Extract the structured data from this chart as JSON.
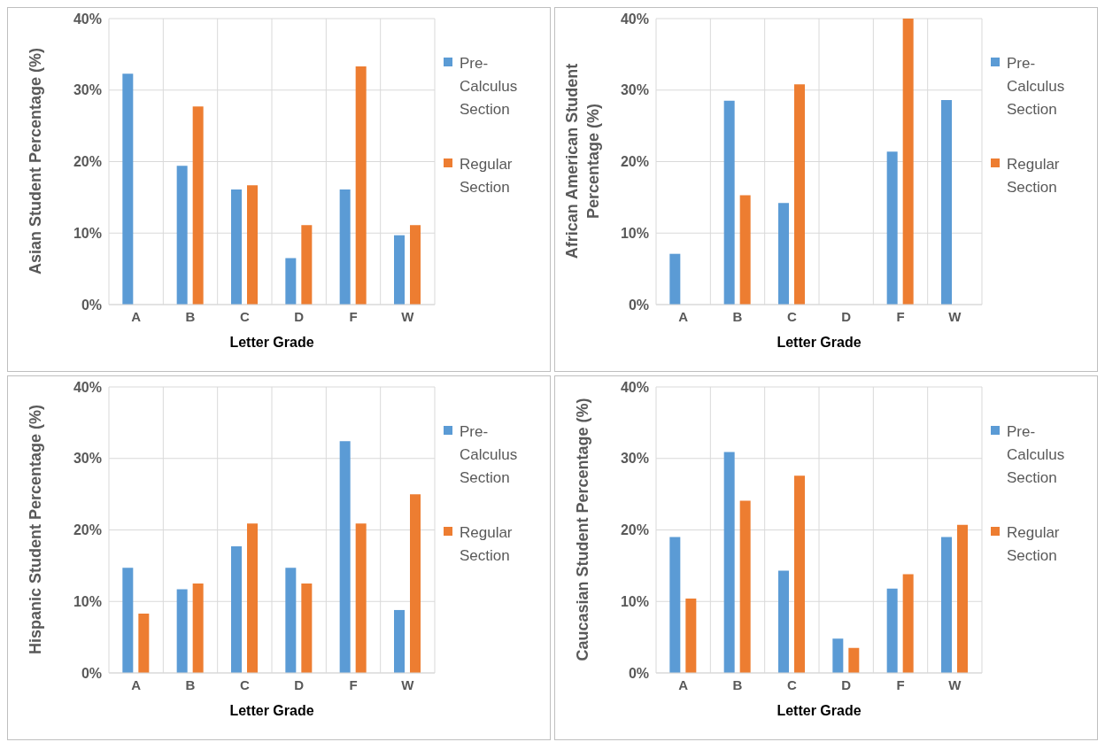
{
  "chart_data": [
    {
      "type": "bar",
      "categories": [
        "A",
        "B",
        "C",
        "D",
        "F",
        "W"
      ],
      "xlabel": "Letter Grade",
      "ylabel": "Asian Student Percentage (%)",
      "ylim": [
        0,
        40
      ],
      "yticks": [
        {
          "value": 0,
          "label": "0%"
        },
        {
          "value": 10,
          "label": "10%"
        },
        {
          "value": 20,
          "label": "20%"
        },
        {
          "value": 30,
          "label": "30%"
        },
        {
          "value": 40,
          "label": "40%"
        }
      ],
      "grid": true,
      "legend": "right",
      "series": [
        {
          "name": "Pre-Calculus Section",
          "color": "#5b9bd5",
          "values": [
            32.3,
            19.4,
            16.1,
            6.5,
            16.1,
            9.7
          ]
        },
        {
          "name": "Regular Section",
          "color": "#ed7d31",
          "values": [
            0,
            27.7,
            16.7,
            11.1,
            33.3,
            11.1
          ]
        }
      ]
    },
    {
      "type": "bar",
      "categories": [
        "A",
        "B",
        "C",
        "D",
        "F",
        "W"
      ],
      "xlabel": "Letter Grade",
      "ylabel": "African American Student Percentage (%)",
      "ylim": [
        0,
        40
      ],
      "yticks": [
        {
          "value": 0,
          "label": "0%"
        },
        {
          "value": 10,
          "label": "10%"
        },
        {
          "value": 20,
          "label": "20%"
        },
        {
          "value": 30,
          "label": "30%"
        },
        {
          "value": 40,
          "label": "40%"
        }
      ],
      "grid": true,
      "legend": "right",
      "series": [
        {
          "name": "Pre-Calculus Section",
          "color": "#5b9bd5",
          "values": [
            7.1,
            28.5,
            14.2,
            0,
            21.4,
            28.6
          ]
        },
        {
          "name": "Regular Section",
          "color": "#ed7d31",
          "values": [
            0,
            15.3,
            30.8,
            0,
            40,
            0
          ]
        }
      ]
    },
    {
      "type": "bar",
      "categories": [
        "A",
        "B",
        "C",
        "D",
        "F",
        "W"
      ],
      "xlabel": "Letter Grade",
      "ylabel": "Hispanic Student Percentage (%)",
      "ylim": [
        0,
        40
      ],
      "yticks": [
        {
          "value": 0,
          "label": "0%"
        },
        {
          "value": 10,
          "label": "10%"
        },
        {
          "value": 20,
          "label": "20%"
        },
        {
          "value": 30,
          "label": "30%"
        },
        {
          "value": 40,
          "label": "40%"
        }
      ],
      "grid": true,
      "legend": "right",
      "series": [
        {
          "name": "Pre-Calculus Section",
          "color": "#5b9bd5",
          "values": [
            14.7,
            11.7,
            17.7,
            14.7,
            32.4,
            8.8
          ]
        },
        {
          "name": "Regular Section",
          "color": "#ed7d31",
          "values": [
            8.3,
            12.5,
            20.9,
            12.5,
            20.9,
            25.0
          ]
        }
      ]
    },
    {
      "type": "bar",
      "categories": [
        "A",
        "B",
        "C",
        "D",
        "F",
        "W"
      ],
      "xlabel": "Letter Grade",
      "ylabel": "Caucasian Student Percentage (%)",
      "ylim": [
        0,
        40
      ],
      "yticks": [
        {
          "value": 0,
          "label": "0%"
        },
        {
          "value": 10,
          "label": "10%"
        },
        {
          "value": 20,
          "label": "20%"
        },
        {
          "value": 30,
          "label": "30%"
        },
        {
          "value": 40,
          "label": "40%"
        }
      ],
      "grid": true,
      "legend": "right",
      "series": [
        {
          "name": "Pre-Calculus Section",
          "color": "#5b9bd5",
          "values": [
            19.0,
            30.9,
            14.3,
            4.8,
            11.8,
            19.0
          ]
        },
        {
          "name": "Regular Section",
          "color": "#ed7d31",
          "values": [
            10.4,
            24.1,
            27.6,
            3.5,
            13.8,
            20.7
          ]
        }
      ]
    }
  ]
}
